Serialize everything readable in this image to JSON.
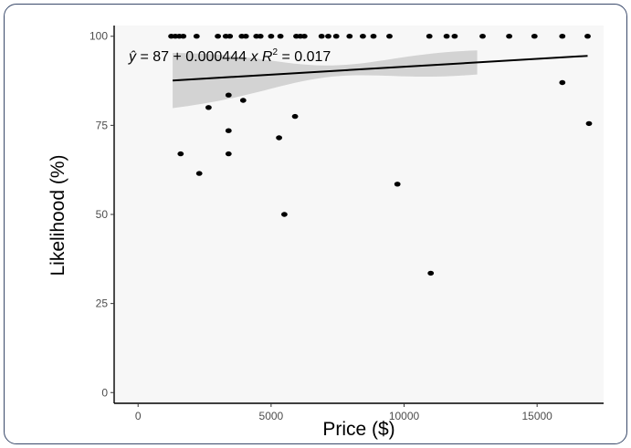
{
  "chart_data": {
    "type": "scatter",
    "xlabel": "Price ($)",
    "ylabel": "Likelihood (%)",
    "xlim": [
      -900,
      17500
    ],
    "ylim": [
      -3,
      103
    ],
    "x_ticks": [
      0,
      5000,
      10000,
      15000
    ],
    "y_ticks": [
      0,
      25,
      50,
      75,
      100
    ],
    "x_tick_labels": [
      "0",
      "5000",
      "10000",
      "15000"
    ],
    "y_tick_labels": [
      "0",
      "25",
      "50",
      "75",
      "100"
    ],
    "grid": false,
    "points": [
      {
        "x": 1250,
        "y": 100
      },
      {
        "x": 1400,
        "y": 100
      },
      {
        "x": 1550,
        "y": 100
      },
      {
        "x": 1700,
        "y": 100
      },
      {
        "x": 2200,
        "y": 100
      },
      {
        "x": 3000,
        "y": 100
      },
      {
        "x": 3300,
        "y": 100
      },
      {
        "x": 3450,
        "y": 100
      },
      {
        "x": 3900,
        "y": 100
      },
      {
        "x": 4050,
        "y": 100
      },
      {
        "x": 4450,
        "y": 100
      },
      {
        "x": 4600,
        "y": 100
      },
      {
        "x": 5000,
        "y": 100
      },
      {
        "x": 5350,
        "y": 100
      },
      {
        "x": 5950,
        "y": 100
      },
      {
        "x": 6100,
        "y": 100
      },
      {
        "x": 6250,
        "y": 100
      },
      {
        "x": 6900,
        "y": 100
      },
      {
        "x": 7150,
        "y": 100
      },
      {
        "x": 7450,
        "y": 100
      },
      {
        "x": 7950,
        "y": 100
      },
      {
        "x": 8450,
        "y": 100
      },
      {
        "x": 8850,
        "y": 100
      },
      {
        "x": 9450,
        "y": 100
      },
      {
        "x": 10950,
        "y": 100
      },
      {
        "x": 11600,
        "y": 100
      },
      {
        "x": 11900,
        "y": 100
      },
      {
        "x": 12950,
        "y": 100
      },
      {
        "x": 13950,
        "y": 100
      },
      {
        "x": 14900,
        "y": 100
      },
      {
        "x": 15950,
        "y": 100
      },
      {
        "x": 16900,
        "y": 100
      },
      {
        "x": 3400,
        "y": 83.5
      },
      {
        "x": 3950,
        "y": 82
      },
      {
        "x": 2650,
        "y": 80
      },
      {
        "x": 5900,
        "y": 77.5
      },
      {
        "x": 3400,
        "y": 73.5
      },
      {
        "x": 5300,
        "y": 71.5
      },
      {
        "x": 1600,
        "y": 67
      },
      {
        "x": 3400,
        "y": 67
      },
      {
        "x": 2300,
        "y": 61.5
      },
      {
        "x": 9750,
        "y": 58.5
      },
      {
        "x": 5500,
        "y": 50
      },
      {
        "x": 11000,
        "y": 33.5
      },
      {
        "x": 15950,
        "y": 87
      },
      {
        "x": 16950,
        "y": 75.5
      }
    ],
    "trend": {
      "intercept": 87,
      "slope": 0.000444,
      "x_range": [
        1300,
        16900
      ],
      "ci_x_range": [
        1300,
        12750
      ],
      "ci_half_width_start": 7.9,
      "ci_half_width_end": 3.6,
      "ci_pinch_x": 7200,
      "ci_half_width_pinch": 1.6
    },
    "colors": {
      "points": "#000000",
      "line": "#000000",
      "ci_band": "#d3d3d3",
      "panel": "#f7f7f7",
      "axis": "#000000"
    }
  }
}
